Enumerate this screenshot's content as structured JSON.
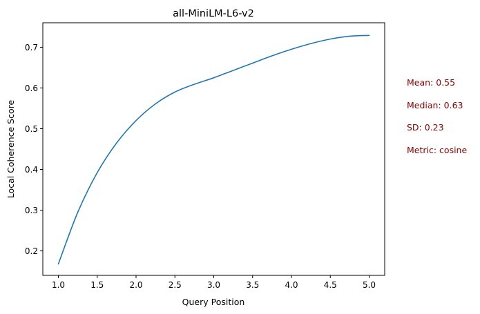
{
  "chart_data": {
    "type": "line",
    "title": "all-MiniLM-L6-v2",
    "xlabel": "Query Position",
    "ylabel": "Local Coherence Score",
    "xlim": [
      0.8,
      5.2
    ],
    "ylim": [
      0.14,
      0.76
    ],
    "xticks": [
      "1.0",
      "1.5",
      "2.0",
      "2.5",
      "3.0",
      "3.5",
      "4.0",
      "4.5",
      "5.0"
    ],
    "yticks": [
      "0.2",
      "0.3",
      "0.4",
      "0.5",
      "0.6",
      "0.7"
    ],
    "grid": false,
    "series": [
      {
        "color": "#1f77b4",
        "x": [
          1.0,
          1.25,
          1.5,
          1.75,
          2.0,
          2.25,
          2.5,
          2.75,
          3.0,
          3.25,
          3.5,
          3.75,
          4.0,
          4.25,
          4.5,
          4.75,
          5.0
        ],
        "y": [
          0.168,
          0.295,
          0.392,
          0.465,
          0.52,
          0.561,
          0.59,
          0.609,
          0.625,
          0.643,
          0.661,
          0.679,
          0.695,
          0.709,
          0.72,
          0.727,
          0.729
        ]
      }
    ],
    "annotations": {
      "color": "#8b0000",
      "mean": "Mean: 0.55",
      "median": "Median: 0.63",
      "sd": "SD: 0.23",
      "metric": "Metric: cosine"
    }
  }
}
